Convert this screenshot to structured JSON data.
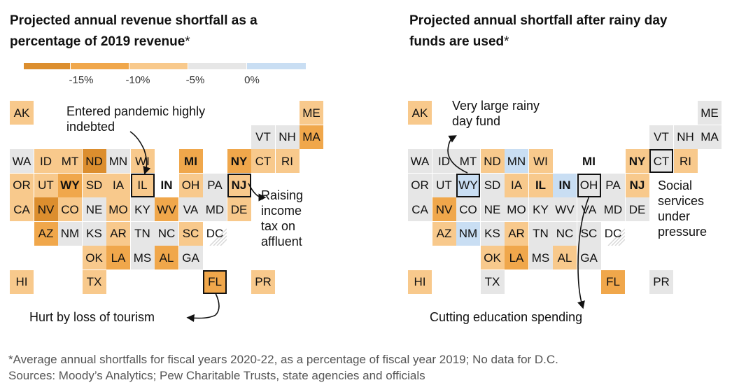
{
  "colors": {
    "c15": "#dc8e2e",
    "c10": "#f0a74b",
    "c5": "#f8c98c",
    "c0": "#e6e6e6",
    "pos": "#c9def3",
    "border": "#ffffff"
  },
  "left": {
    "title_line1": "Projected annual revenue shortfall as a",
    "title_line2": "percentage of 2019 revenue",
    "title_asterisk": "*",
    "legend_ticks": [
      "-15%",
      "-10%",
      "-5%",
      "0%"
    ],
    "annotations": {
      "indebted_1": "Entered pandemic highly",
      "indebted_2": "indebted",
      "raising_1": "Raising",
      "raising_2": "income",
      "raising_3": "tax on",
      "raising_4": "affluent",
      "tourism": "Hurt by loss of tourism"
    }
  },
  "right": {
    "title_line1": "Projected annual shortfall after rainy day",
    "title_line2": "funds are used",
    "title_asterisk": "*",
    "annotations": {
      "rainy_1": "Very large rainy",
      "rainy_2": "day fund",
      "social_1": "Social",
      "social_2": "services",
      "social_3": "under",
      "social_4": "pressure",
      "education": "Cutting education spending"
    }
  },
  "map_data": {
    "left": [
      {
        "s": "AK",
        "c": 0,
        "r": 0,
        "v": "c5"
      },
      {
        "s": "ME",
        "c": 12,
        "r": 0,
        "v": "c5"
      },
      {
        "s": "VT",
        "c": 10,
        "r": 1,
        "v": "c0"
      },
      {
        "s": "NH",
        "c": 11,
        "r": 1,
        "v": "c0"
      },
      {
        "s": "MA",
        "c": 12,
        "r": 1,
        "v": "c10"
      },
      {
        "s": "WA",
        "c": 0,
        "r": 2,
        "v": "c0"
      },
      {
        "s": "ID",
        "c": 1,
        "r": 2,
        "v": "c5"
      },
      {
        "s": "MT",
        "c": 2,
        "r": 2,
        "v": "c5"
      },
      {
        "s": "ND",
        "c": 3,
        "r": 2,
        "v": "c15"
      },
      {
        "s": "MN",
        "c": 4,
        "r": 2,
        "v": "c0"
      },
      {
        "s": "WI",
        "c": 5,
        "r": 2,
        "v": "c5"
      },
      {
        "s": "MI",
        "c": 7,
        "r": 2,
        "v": "c10",
        "b": true
      },
      {
        "s": "NY",
        "c": 9,
        "r": 2,
        "v": "c10",
        "b": true
      },
      {
        "s": "CT",
        "c": 10,
        "r": 2,
        "v": "c5"
      },
      {
        "s": "RI",
        "c": 11,
        "r": 2,
        "v": "c5"
      },
      {
        "s": "OR",
        "c": 0,
        "r": 3,
        "v": "c5"
      },
      {
        "s": "UT",
        "c": 1,
        "r": 3,
        "v": "c5"
      },
      {
        "s": "WY",
        "c": 2,
        "r": 3,
        "v": "c10",
        "b": true
      },
      {
        "s": "SD",
        "c": 3,
        "r": 3,
        "v": "c5"
      },
      {
        "s": "IA",
        "c": 4,
        "r": 3,
        "v": "c5"
      },
      {
        "s": "IL",
        "c": 5,
        "r": 3,
        "v": "c5",
        "o": true
      },
      {
        "s": "IN",
        "c": 6,
        "r": 3,
        "v": "none",
        "b": true
      },
      {
        "s": "OH",
        "c": 7,
        "r": 3,
        "v": "c5"
      },
      {
        "s": "PA",
        "c": 8,
        "r": 3,
        "v": "c0"
      },
      {
        "s": "NJ",
        "c": 9,
        "r": 3,
        "v": "c5",
        "b": true,
        "o": true
      },
      {
        "s": "CA",
        "c": 0,
        "r": 4,
        "v": "c5"
      },
      {
        "s": "NV",
        "c": 1,
        "r": 4,
        "v": "c15"
      },
      {
        "s": "CO",
        "c": 2,
        "r": 4,
        "v": "c5"
      },
      {
        "s": "NE",
        "c": 3,
        "r": 4,
        "v": "c0"
      },
      {
        "s": "MO",
        "c": 4,
        "r": 4,
        "v": "c5"
      },
      {
        "s": "KY",
        "c": 5,
        "r": 4,
        "v": "c0"
      },
      {
        "s": "WV",
        "c": 6,
        "r": 4,
        "v": "c10"
      },
      {
        "s": "VA",
        "c": 7,
        "r": 4,
        "v": "c0"
      },
      {
        "s": "MD",
        "c": 8,
        "r": 4,
        "v": "c0"
      },
      {
        "s": "DE",
        "c": 9,
        "r": 4,
        "v": "c5"
      },
      {
        "s": "AZ",
        "c": 1,
        "r": 5,
        "v": "c10"
      },
      {
        "s": "NM",
        "c": 2,
        "r": 5,
        "v": "c0"
      },
      {
        "s": "KS",
        "c": 3,
        "r": 5,
        "v": "c0"
      },
      {
        "s": "AR",
        "c": 4,
        "r": 5,
        "v": "c5"
      },
      {
        "s": "TN",
        "c": 5,
        "r": 5,
        "v": "c0"
      },
      {
        "s": "NC",
        "c": 6,
        "r": 5,
        "v": "c0"
      },
      {
        "s": "SC",
        "c": 7,
        "r": 5,
        "v": "c5"
      },
      {
        "s": "DC",
        "c": 8,
        "r": 5,
        "v": "dc"
      },
      {
        "s": "OK",
        "c": 3,
        "r": 6,
        "v": "c5"
      },
      {
        "s": "LA",
        "c": 4,
        "r": 6,
        "v": "c10"
      },
      {
        "s": "MS",
        "c": 5,
        "r": 6,
        "v": "c0"
      },
      {
        "s": "AL",
        "c": 6,
        "r": 6,
        "v": "c10"
      },
      {
        "s": "GA",
        "c": 7,
        "r": 6,
        "v": "c0"
      },
      {
        "s": "HI",
        "c": 0,
        "r": 7,
        "v": "c5"
      },
      {
        "s": "TX",
        "c": 3,
        "r": 7,
        "v": "c5"
      },
      {
        "s": "FL",
        "c": 8,
        "r": 7,
        "v": "c10",
        "o": true
      },
      {
        "s": "PR",
        "c": 10,
        "r": 7,
        "v": "c5"
      }
    ],
    "right": [
      {
        "s": "AK",
        "c": 0,
        "r": 0,
        "v": "c5"
      },
      {
        "s": "ME",
        "c": 12,
        "r": 0,
        "v": "c0"
      },
      {
        "s": "VT",
        "c": 10,
        "r": 1,
        "v": "c0"
      },
      {
        "s": "NH",
        "c": 11,
        "r": 1,
        "v": "c0"
      },
      {
        "s": "MA",
        "c": 12,
        "r": 1,
        "v": "c0"
      },
      {
        "s": "WA",
        "c": 0,
        "r": 2,
        "v": "c0"
      },
      {
        "s": "ID",
        "c": 1,
        "r": 2,
        "v": "c0"
      },
      {
        "s": "MT",
        "c": 2,
        "r": 2,
        "v": "c0"
      },
      {
        "s": "ND",
        "c": 3,
        "r": 2,
        "v": "c5"
      },
      {
        "s": "MN",
        "c": 4,
        "r": 2,
        "v": "pos"
      },
      {
        "s": "WI",
        "c": 5,
        "r": 2,
        "v": "c5"
      },
      {
        "s": "MI",
        "c": 7,
        "r": 2,
        "v": "none",
        "b": true
      },
      {
        "s": "NY",
        "c": 9,
        "r": 2,
        "v": "c5",
        "b": true
      },
      {
        "s": "CT",
        "c": 10,
        "r": 2,
        "v": "c0",
        "o": true
      },
      {
        "s": "RI",
        "c": 11,
        "r": 2,
        "v": "c5"
      },
      {
        "s": "OR",
        "c": 0,
        "r": 3,
        "v": "c0"
      },
      {
        "s": "UT",
        "c": 1,
        "r": 3,
        "v": "c0"
      },
      {
        "s": "WY",
        "c": 2,
        "r": 3,
        "v": "pos",
        "o": true
      },
      {
        "s": "SD",
        "c": 3,
        "r": 3,
        "v": "c0"
      },
      {
        "s": "IA",
        "c": 4,
        "r": 3,
        "v": "c5"
      },
      {
        "s": "IL",
        "c": 5,
        "r": 3,
        "v": "c5",
        "b": true
      },
      {
        "s": "IN",
        "c": 6,
        "r": 3,
        "v": "pos",
        "b": true
      },
      {
        "s": "OH",
        "c": 7,
        "r": 3,
        "v": "c0",
        "o": true
      },
      {
        "s": "PA",
        "c": 8,
        "r": 3,
        "v": "c0"
      },
      {
        "s": "NJ",
        "c": 9,
        "r": 3,
        "v": "c5",
        "b": true
      },
      {
        "s": "CA",
        "c": 0,
        "r": 4,
        "v": "c0"
      },
      {
        "s": "NV",
        "c": 1,
        "r": 4,
        "v": "c10"
      },
      {
        "s": "CO",
        "c": 2,
        "r": 4,
        "v": "c0"
      },
      {
        "s": "NE",
        "c": 3,
        "r": 4,
        "v": "c0"
      },
      {
        "s": "MO",
        "c": 4,
        "r": 4,
        "v": "c0"
      },
      {
        "s": "KY",
        "c": 5,
        "r": 4,
        "v": "c0"
      },
      {
        "s": "WV",
        "c": 6,
        "r": 4,
        "v": "c0"
      },
      {
        "s": "VA",
        "c": 7,
        "r": 4,
        "v": "c0"
      },
      {
        "s": "MD",
        "c": 8,
        "r": 4,
        "v": "c0"
      },
      {
        "s": "DE",
        "c": 9,
        "r": 4,
        "v": "c0"
      },
      {
        "s": "AZ",
        "c": 1,
        "r": 5,
        "v": "c5"
      },
      {
        "s": "NM",
        "c": 2,
        "r": 5,
        "v": "pos"
      },
      {
        "s": "KS",
        "c": 3,
        "r": 5,
        "v": "c0"
      },
      {
        "s": "AR",
        "c": 4,
        "r": 5,
        "v": "c5"
      },
      {
        "s": "TN",
        "c": 5,
        "r": 5,
        "v": "c0"
      },
      {
        "s": "NC",
        "c": 6,
        "r": 5,
        "v": "c0"
      },
      {
        "s": "SC",
        "c": 7,
        "r": 5,
        "v": "c0"
      },
      {
        "s": "DC",
        "c": 8,
        "r": 5,
        "v": "dc"
      },
      {
        "s": "OK",
        "c": 3,
        "r": 6,
        "v": "c5"
      },
      {
        "s": "LA",
        "c": 4,
        "r": 6,
        "v": "c10"
      },
      {
        "s": "MS",
        "c": 5,
        "r": 6,
        "v": "c0"
      },
      {
        "s": "AL",
        "c": 6,
        "r": 6,
        "v": "c5"
      },
      {
        "s": "GA",
        "c": 7,
        "r": 6,
        "v": "c0"
      },
      {
        "s": "HI",
        "c": 0,
        "r": 7,
        "v": "c5"
      },
      {
        "s": "TX",
        "c": 3,
        "r": 7,
        "v": "c0"
      },
      {
        "s": "FL",
        "c": 8,
        "r": 7,
        "v": "c10"
      },
      {
        "s": "PR",
        "c": 10,
        "r": 7,
        "v": "c0"
      }
    ]
  },
  "footnote_line1": "*Average annual shortfalls for fiscal years 2020-22, as a percentage of fiscal year 2019; No data for D.C.",
  "footnote_line2": "Sources: Moody’s Analytics; Pew Charitable Trusts, state agencies and officials"
}
